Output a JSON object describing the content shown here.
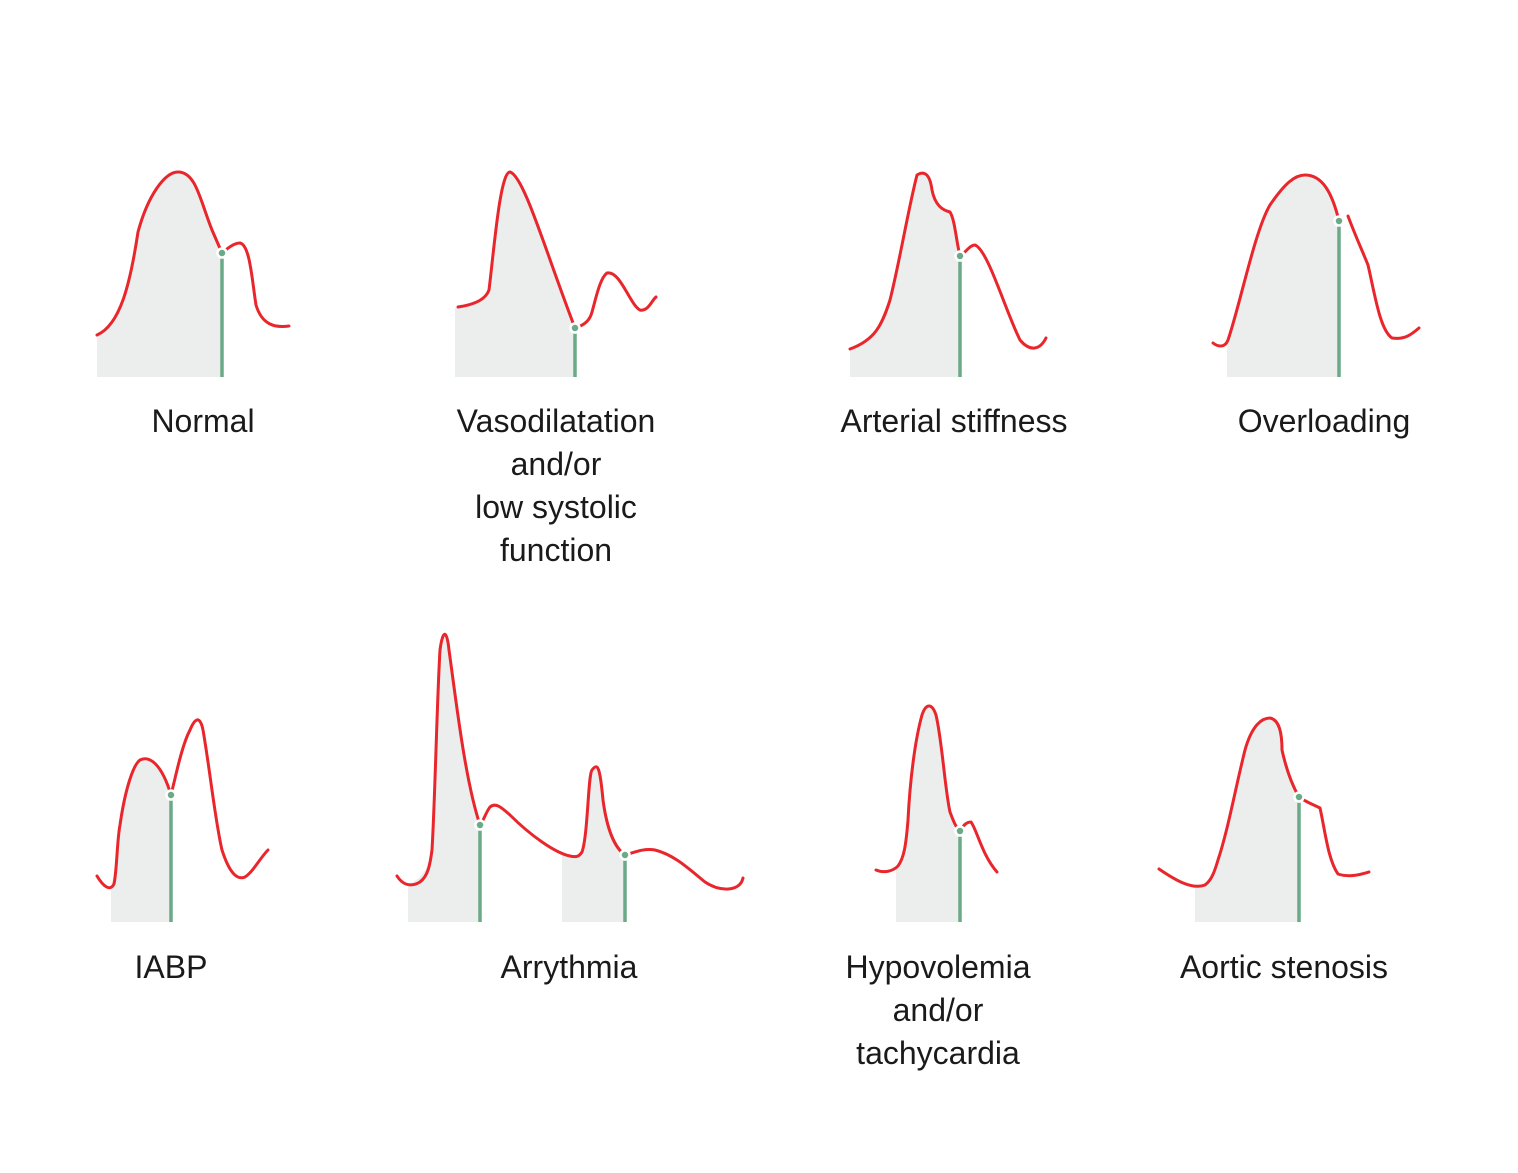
{
  "colors": {
    "waveform": "#e8262b",
    "dicrotic_marker": "#6aaa86",
    "shading": "#eceeed",
    "text": "#1a1a1a",
    "background": "#ffffff"
  },
  "panels": [
    {
      "id": "normal",
      "label_lines": [
        "Normal"
      ]
    },
    {
      "id": "vasodilatation",
      "label_lines": [
        "Vasodilatation",
        "and/or",
        "low systolic",
        "function"
      ]
    },
    {
      "id": "arterial-stiffness",
      "label_lines": [
        "Arterial stiffness"
      ]
    },
    {
      "id": "overloading",
      "label_lines": [
        "Overloading"
      ]
    },
    {
      "id": "iabp",
      "label_lines": [
        "IABP"
      ]
    },
    {
      "id": "arrythmia",
      "label_lines": [
        "Arrythmia"
      ]
    },
    {
      "id": "hypovolemia",
      "label_lines": [
        "Hypovolemia",
        "and/or",
        "tachycardia"
      ]
    },
    {
      "id": "aortic-stenosis",
      "label_lines": [
        "Aortic stenosis"
      ]
    }
  ]
}
